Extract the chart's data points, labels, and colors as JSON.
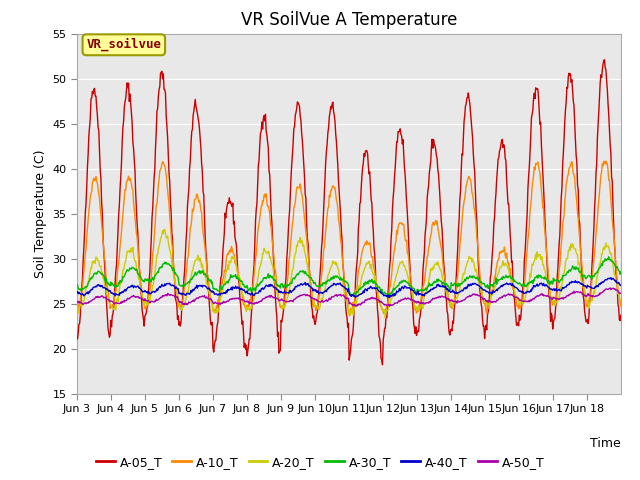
{
  "title": "VR SoilVue A Temperature",
  "xlabel": "Time",
  "ylabel": "Soil Temperature (C)",
  "ylim": [
    15,
    55
  ],
  "yticks": [
    15,
    20,
    25,
    30,
    35,
    40,
    45,
    50,
    55
  ],
  "series": [
    "A-05_T",
    "A-10_T",
    "A-20_T",
    "A-30_T",
    "A-40_T",
    "A-50_T"
  ],
  "colors": [
    "#cc0000",
    "#ff8800",
    "#cccc00",
    "#00bb00",
    "#0000cc",
    "#aa00aa"
  ],
  "xtick_labels": [
    "Jun 3",
    "Jun 4",
    "Jun 5",
    "Jun 6",
    "Jun 7",
    "Jun 8",
    "Jun 9",
    "Jun 10",
    "Jun 11",
    "Jun 12",
    "Jun 13",
    "Jun 14",
    "Jun 15",
    "Jun 16",
    "Jun 17",
    "Jun 18"
  ],
  "n_days": 16,
  "legend_label": "VR_soilvue",
  "bg_color": "#e8e8e8",
  "legend_box_color": "#ffff99",
  "legend_box_edge": "#999900",
  "title_fontsize": 12,
  "axis_label_fontsize": 9,
  "tick_fontsize": 8,
  "legend_fontsize": 9
}
